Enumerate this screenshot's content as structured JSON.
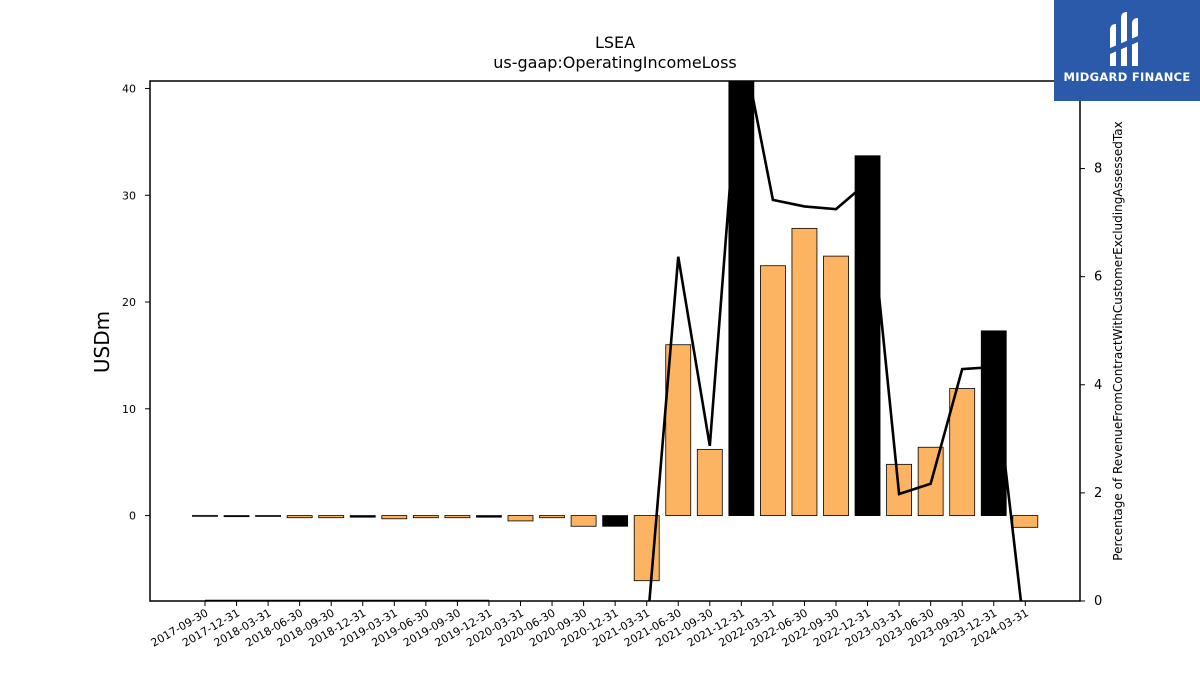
{
  "logo": {
    "brand_text": "MIDGARD FINANCE",
    "background": "#2b5aab"
  },
  "colors": {
    "bar_normal": "#fdb462",
    "bar_highlight": "#000000",
    "line": "#000000"
  },
  "chart_data": {
    "type": "bar",
    "title": "LSEA",
    "subtitle": "us-gaap:OperatingIncomeLoss",
    "ylabel": "USDm",
    "y2label": "Percentage of RevenueFromContractWithCustomerExcludingAssessedTax",
    "ylim": [
      -8,
      40.7
    ],
    "y_ticks": [
      0,
      10,
      20,
      30,
      40
    ],
    "y2lim": [
      0,
      9.62
    ],
    "y2_ticks": [
      0,
      2,
      4,
      6,
      8
    ],
    "categories": [
      "2017-09-30",
      "2017-12-31",
      "2018-03-31",
      "2018-06-30",
      "2018-09-30",
      "2018-12-31",
      "2019-03-31",
      "2019-06-30",
      "2019-09-30",
      "2019-12-31",
      "2020-03-31",
      "2020-06-30",
      "2020-09-30",
      "2020-12-31",
      "2021-03-31",
      "2021-06-30",
      "2021-09-30",
      "2021-12-31",
      "2022-03-31",
      "2022-06-30",
      "2022-09-30",
      "2022-12-31",
      "2023-03-31",
      "2023-06-30",
      "2023-09-30",
      "2023-12-31",
      "2024-03-31"
    ],
    "series": [
      {
        "type": "bar",
        "values": [
          0.02,
          -0.1,
          0.01,
          -0.2,
          -0.2,
          -0.15,
          -0.3,
          -0.2,
          -0.2,
          -0.15,
          -0.5,
          -0.2,
          -1.0,
          -1.0,
          -6.1,
          16.0,
          6.2,
          41.5,
          23.4,
          26.9,
          24.3,
          33.7,
          4.8,
          6.4,
          11.9,
          17.3,
          -1.1
        ],
        "highlight": [
          false,
          true,
          false,
          false,
          false,
          true,
          false,
          false,
          false,
          true,
          false,
          false,
          false,
          true,
          false,
          false,
          false,
          true,
          false,
          false,
          false,
          true,
          false,
          false,
          false,
          true,
          false
        ]
      },
      {
        "type": "line",
        "axis": "right",
        "values": [
          0,
          0,
          0,
          0,
          0,
          0,
          0,
          0,
          0,
          0,
          null,
          null,
          null,
          null,
          -0.6,
          6.37,
          2.87,
          10.4,
          7.42,
          7.3,
          7.25,
          7.75,
          1.98,
          2.17,
          4.29,
          4.33,
          -0.7
        ]
      }
    ]
  }
}
